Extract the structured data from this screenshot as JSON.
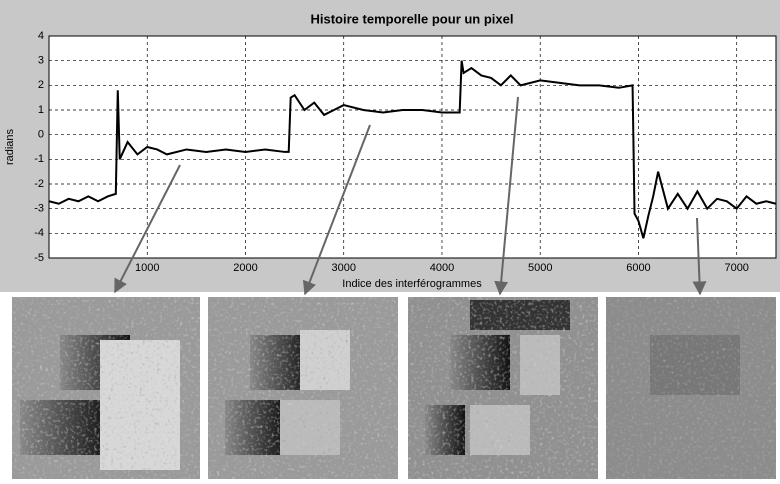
{
  "chart_data": {
    "type": "line",
    "title": "Histoire temporelle pour un pixel",
    "x_label": "Indice des interférogrammes",
    "y_label": "radians",
    "x": [
      0,
      100,
      200,
      300,
      400,
      500,
      600,
      680,
      700,
      720,
      800,
      900,
      1000,
      1100,
      1200,
      1400,
      1600,
      1800,
      2000,
      2200,
      2400,
      2440,
      2460,
      2500,
      2600,
      2700,
      2800,
      2900,
      3000,
      3200,
      3400,
      3600,
      3800,
      4000,
      4180,
      4200,
      4220,
      4300,
      4400,
      4500,
      4600,
      4700,
      4800,
      5000,
      5200,
      5400,
      5600,
      5800,
      5940,
      5960,
      6000,
      6050,
      6100,
      6150,
      6200,
      6300,
      6400,
      6500,
      6600,
      6700,
      6800,
      6900,
      7000,
      7100,
      7200,
      7300,
      7400
    ],
    "values": [
      -2.7,
      -2.8,
      -2.6,
      -2.7,
      -2.5,
      -2.7,
      -2.5,
      -2.4,
      1.8,
      -1,
      -0.3,
      -0.8,
      -0.5,
      -0.6,
      -0.8,
      -0.6,
      -0.7,
      -0.6,
      -0.7,
      -0.6,
      -0.7,
      -0.7,
      1.5,
      1.6,
      1.0,
      1.3,
      0.8,
      1.0,
      1.2,
      1.0,
      0.9,
      1.0,
      1.0,
      0.9,
      0.9,
      3.0,
      2.5,
      2.7,
      2.4,
      2.3,
      2.0,
      2.4,
      2.0,
      2.2,
      2.1,
      2.0,
      2.0,
      1.9,
      2.0,
      -3.2,
      -3.5,
      -4.2,
      -3.3,
      -2.5,
      -1.5,
      -3.0,
      -2.4,
      -3.0,
      -2.3,
      -3.0,
      -2.6,
      -2.7,
      -3.0,
      -2.5,
      -2.8,
      -2.7,
      -2.8
    ],
    "color": "#000000",
    "xlim": [
      0,
      7400
    ],
    "xticks": [
      1000,
      2000,
      3000,
      4000,
      5000,
      6000,
      7000
    ],
    "ylim": [
      -5,
      4
    ],
    "yticks": [
      -5,
      -4,
      -3,
      -2,
      -1,
      0,
      1,
      2,
      3,
      4
    ],
    "grid": true
  }
}
